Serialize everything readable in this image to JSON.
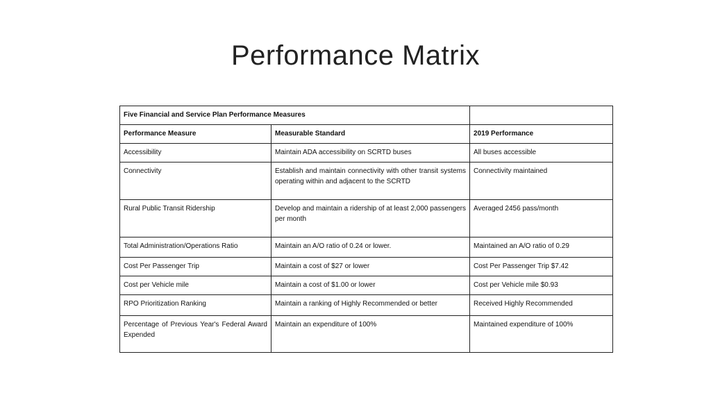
{
  "title": "Performance Matrix",
  "table": {
    "section_header": "Five Financial and Service Plan Performance Measures",
    "columns": [
      "Performance Measure",
      "Measurable Standard",
      "2019 Performance"
    ],
    "rows": [
      [
        "Accessibility",
        "Maintain ADA accessibility on SCRTD buses",
        "All buses accessible"
      ],
      [
        "Connectivity",
        "Establish and maintain connectivity with other transit systems operating within and adjacent to the SCRTD",
        "Connectivity maintained"
      ],
      [
        "Rural Public Transit Ridership",
        "Develop and maintain a ridership of at least 2,000 passengers per month",
        "Averaged 2456 pass/month"
      ],
      [
        "Total Administration/Operations Ratio",
        "Maintain an A/O ratio of 0.24 or lower.",
        "Maintained an A/O ratio of 0.29"
      ],
      [
        "Cost Per Passenger Trip",
        "Maintain a cost of $27 or lower",
        "Cost Per Passenger Trip $7.42"
      ],
      [
        "Cost per Vehicle mile",
        "Maintain a cost of $1.00 or lower",
        "Cost per Vehicle mile $0.93"
      ],
      [
        "RPO Prioritization Ranking",
        "Maintain a ranking of Highly Recommended or better",
        "Received Highly Recommended"
      ],
      [
        "Percentage of Previous Year's Federal Award Expended",
        "Maintain an expenditure of 100%",
        "Maintained expenditure of 100%"
      ]
    ]
  }
}
